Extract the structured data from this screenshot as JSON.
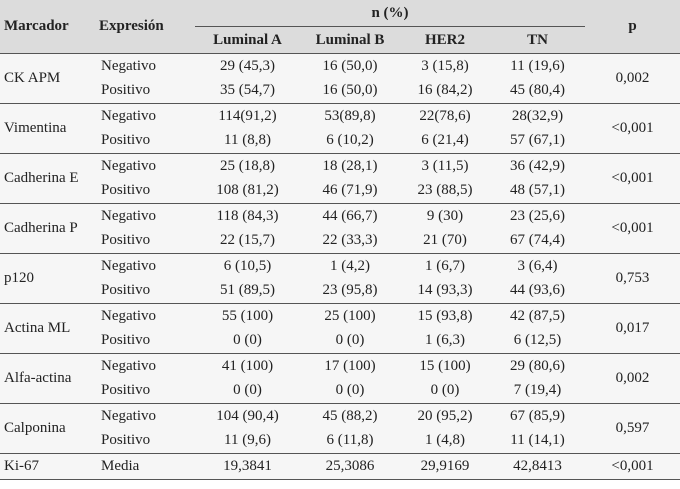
{
  "header": {
    "marker": "Marcador",
    "expression": "Expresión",
    "group": "n (%)",
    "p": "p",
    "columns": [
      "Luminal A",
      "Luminal B",
      "HER2",
      "TN"
    ]
  },
  "groups": [
    {
      "marker": "CK APM",
      "p": "0,002",
      "rows": [
        {
          "expression": "Negativo",
          "cells": [
            "29 (45,3)",
            "16 (50,0)",
            "3 (15,8)",
            "11 (19,6)"
          ]
        },
        {
          "expression": "Positivo",
          "cells": [
            "35 (54,7)",
            "16 (50,0)",
            "16 (84,2)",
            "45 (80,4)"
          ]
        }
      ]
    },
    {
      "marker": "Vimentina",
      "p": "<0,001",
      "rows": [
        {
          "expression": "Negativo",
          "cells": [
            "114(91,2)",
            "53(89,8)",
            "22(78,6)",
            "28(32,9)"
          ]
        },
        {
          "expression": "Positivo",
          "cells": [
            "11 (8,8)",
            "6 (10,2)",
            "6 (21,4)",
            "57 (67,1)"
          ]
        }
      ]
    },
    {
      "marker": "Cadherina E",
      "p": "<0,001",
      "rows": [
        {
          "expression": "Negativo",
          "cells": [
            "25 (18,8)",
            "18 (28,1)",
            "3 (11,5)",
            "36 (42,9)"
          ]
        },
        {
          "expression": "Positivo",
          "cells": [
            "108 (81,2)",
            "46 (71,9)",
            "23 (88,5)",
            "48 (57,1)"
          ]
        }
      ]
    },
    {
      "marker": "Cadherina P",
      "p": "<0,001",
      "rows": [
        {
          "expression": "Negativo",
          "cells": [
            "118 (84,3)",
            "44 (66,7)",
            "9 (30)",
            "23 (25,6)"
          ]
        },
        {
          "expression": "Positivo",
          "cells": [
            "22 (15,7)",
            "22 (33,3)",
            "21 (70)",
            "67 (74,4)"
          ]
        }
      ]
    },
    {
      "marker": "p120",
      "p": "0,753",
      "rows": [
        {
          "expression": "Negativo",
          "cells": [
            "6 (10,5)",
            "1 (4,2)",
            "1 (6,7)",
            "3 (6,4)"
          ]
        },
        {
          "expression": "Positivo",
          "cells": [
            "51 (89,5)",
            "23 (95,8)",
            "14 (93,3)",
            "44 (93,6)"
          ]
        }
      ]
    },
    {
      "marker": "Actina ML",
      "p": "0,017",
      "rows": [
        {
          "expression": "Negativo",
          "cells": [
            "55 (100)",
            "25 (100)",
            "15 (93,8)",
            "42 (87,5)"
          ]
        },
        {
          "expression": "Positivo",
          "cells": [
            "0 (0)",
            "0 (0)",
            "1 (6,3)",
            "6 (12,5)"
          ]
        }
      ]
    },
    {
      "marker": "Alfa-actina",
      "p": "0,002",
      "rows": [
        {
          "expression": "Negativo",
          "cells": [
            "41 (100)",
            "17 (100)",
            "15 (100)",
            "29 (80,6)"
          ]
        },
        {
          "expression": "Positivo",
          "cells": [
            "0 (0)",
            "0 (0)",
            "0 (0)",
            "7 (19,4)"
          ]
        }
      ]
    },
    {
      "marker": "Calponina",
      "p": "0,597",
      "rows": [
        {
          "expression": "Negativo",
          "cells": [
            "104 (90,4)",
            "45 (88,2)",
            "20 (95,2)",
            "67 (85,9)"
          ]
        },
        {
          "expression": "Positivo",
          "cells": [
            "11 (9,6)",
            "6 (11,8)",
            "1 (4,8)",
            "11 (14,1)"
          ]
        }
      ]
    },
    {
      "marker": "Ki-67",
      "p": "<0,001",
      "rows": [
        {
          "expression": "Media",
          "cells": [
            "19,3841",
            "25,3086",
            "29,9169",
            "42,8413"
          ]
        }
      ]
    }
  ]
}
